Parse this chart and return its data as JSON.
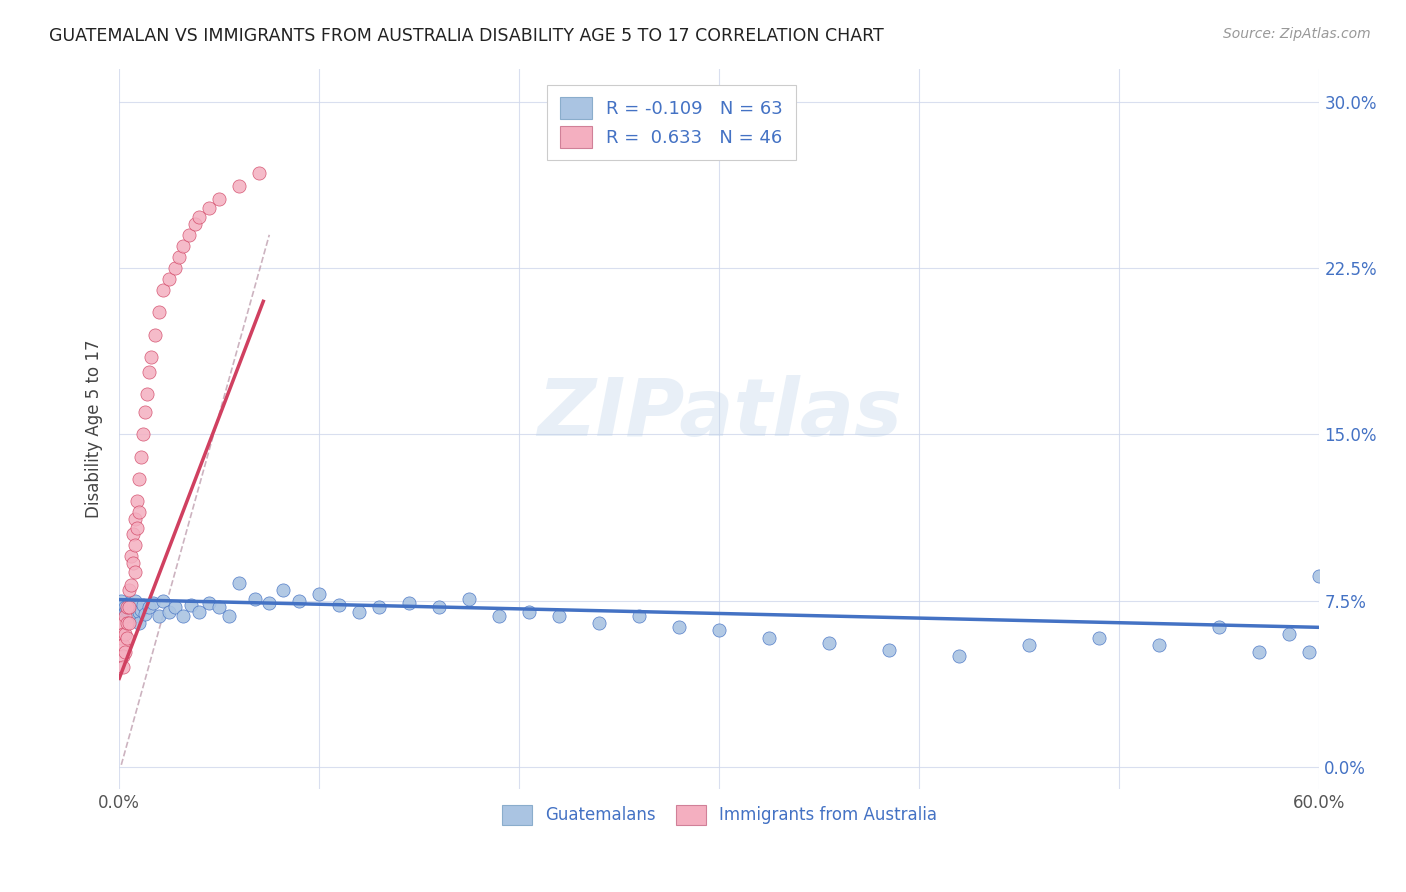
{
  "title": "GUATEMALAN VS IMMIGRANTS FROM AUSTRALIA DISABILITY AGE 5 TO 17 CORRELATION CHART",
  "source": "Source: ZipAtlas.com",
  "ylabel": "Disability Age 5 to 17",
  "xlim": [
    0.0,
    0.6
  ],
  "ylim": [
    -0.01,
    0.315
  ],
  "xticks": [
    0.0,
    0.1,
    0.2,
    0.3,
    0.4,
    0.5,
    0.6
  ],
  "xtick_labels": [
    "0.0%",
    "",
    "",
    "",
    "",
    "",
    "60.0%"
  ],
  "yticks": [
    0.0,
    0.075,
    0.15,
    0.225,
    0.3
  ],
  "ytick_labels_right": [
    "0.0%",
    "7.5%",
    "15.0%",
    "22.5%",
    "30.0%"
  ],
  "legend_R1": "-0.109",
  "legend_N1": "63",
  "legend_R2": "0.633",
  "legend_N2": "46",
  "color_blue": "#aac4e2",
  "color_pink": "#f4afc0",
  "color_blue_line": "#4472c4",
  "color_pink_line": "#d04060",
  "watermark_text": "ZIPatlas",
  "blue_scatter_x": [
    0.001,
    0.002,
    0.003,
    0.003,
    0.004,
    0.004,
    0.005,
    0.005,
    0.006,
    0.006,
    0.007,
    0.007,
    0.008,
    0.008,
    0.009,
    0.01,
    0.01,
    0.011,
    0.012,
    0.013,
    0.015,
    0.017,
    0.02,
    0.022,
    0.025,
    0.028,
    0.032,
    0.036,
    0.04,
    0.045,
    0.05,
    0.055,
    0.06,
    0.068,
    0.075,
    0.082,
    0.09,
    0.1,
    0.11,
    0.12,
    0.13,
    0.145,
    0.16,
    0.175,
    0.19,
    0.205,
    0.22,
    0.24,
    0.26,
    0.28,
    0.3,
    0.325,
    0.355,
    0.385,
    0.42,
    0.455,
    0.49,
    0.52,
    0.55,
    0.57,
    0.585,
    0.595,
    0.6
  ],
  "blue_scatter_y": [
    0.075,
    0.073,
    0.072,
    0.07,
    0.068,
    0.071,
    0.074,
    0.069,
    0.072,
    0.068,
    0.073,
    0.07,
    0.075,
    0.068,
    0.072,
    0.07,
    0.065,
    0.071,
    0.073,
    0.069,
    0.072,
    0.074,
    0.068,
    0.075,
    0.07,
    0.072,
    0.068,
    0.073,
    0.07,
    0.074,
    0.072,
    0.068,
    0.083,
    0.076,
    0.074,
    0.08,
    0.075,
    0.078,
    0.073,
    0.07,
    0.072,
    0.074,
    0.072,
    0.076,
    0.068,
    0.07,
    0.068,
    0.065,
    0.068,
    0.063,
    0.062,
    0.058,
    0.056,
    0.053,
    0.05,
    0.055,
    0.058,
    0.055,
    0.063,
    0.052,
    0.06,
    0.052,
    0.086
  ],
  "pink_scatter_x": [
    0.001,
    0.001,
    0.002,
    0.002,
    0.002,
    0.002,
    0.003,
    0.003,
    0.003,
    0.004,
    0.004,
    0.004,
    0.005,
    0.005,
    0.005,
    0.006,
    0.006,
    0.007,
    0.007,
    0.008,
    0.008,
    0.008,
    0.009,
    0.009,
    0.01,
    0.01,
    0.011,
    0.012,
    0.013,
    0.014,
    0.015,
    0.016,
    0.018,
    0.02,
    0.022,
    0.025,
    0.028,
    0.03,
    0.032,
    0.035,
    0.038,
    0.04,
    0.045,
    0.05,
    0.06,
    0.07
  ],
  "pink_scatter_y": [
    0.065,
    0.058,
    0.06,
    0.055,
    0.05,
    0.045,
    0.068,
    0.06,
    0.052,
    0.072,
    0.065,
    0.058,
    0.08,
    0.072,
    0.065,
    0.095,
    0.082,
    0.105,
    0.092,
    0.112,
    0.1,
    0.088,
    0.12,
    0.108,
    0.13,
    0.115,
    0.14,
    0.15,
    0.16,
    0.168,
    0.178,
    0.185,
    0.195,
    0.205,
    0.215,
    0.22,
    0.225,
    0.23,
    0.235,
    0.24,
    0.245,
    0.248,
    0.252,
    0.256,
    0.262,
    0.268
  ],
  "pink_trend_x0": 0.0,
  "pink_trend_x1": 0.072,
  "pink_trend_y0": 0.04,
  "pink_trend_y1": 0.21,
  "blue_trend_x0": 0.0,
  "blue_trend_x1": 0.6,
  "blue_trend_y0": 0.0755,
  "blue_trend_y1": 0.063,
  "ref_line_x": [
    0.001,
    0.075
  ],
  "ref_line_y": [
    0.001,
    0.24
  ]
}
